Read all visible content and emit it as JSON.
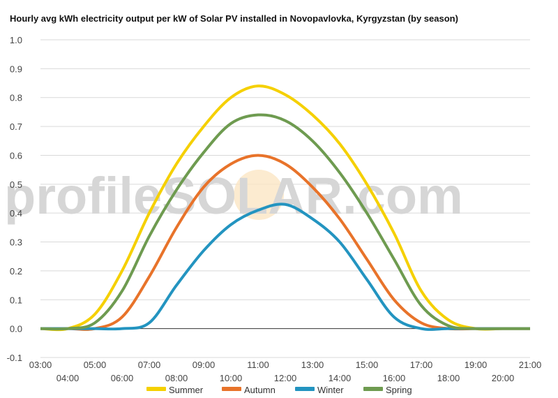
{
  "chart_data": {
    "type": "line",
    "title": "Hourly avg kWh electricity output per kW of Solar PV installed in Novopavlovka, Kyrgyzstan (by season)",
    "watermark": "profileSOLAR.com",
    "x": [
      "03:00",
      "04:00",
      "05:00",
      "06:00",
      "07:00",
      "08:00",
      "09:00",
      "10:00",
      "11:00",
      "12:00",
      "13:00",
      "14:00",
      "15:00",
      "16:00",
      "17:00",
      "18:00",
      "19:00",
      "20:00",
      "21:00"
    ],
    "ylim": [
      -0.1,
      1.0
    ],
    "yticks": [
      "1.0",
      "0.9",
      "0.8",
      "0.7",
      "0.6",
      "0.5",
      "0.4",
      "0.3",
      "0.2",
      "0.1",
      "0.0",
      "-0.1"
    ],
    "grid": true,
    "legend_position": "bottom",
    "series": [
      {
        "name": "Summer",
        "color": "#f5d000",
        "values": [
          0.0,
          0.0,
          0.05,
          0.2,
          0.4,
          0.57,
          0.7,
          0.8,
          0.84,
          0.81,
          0.74,
          0.64,
          0.5,
          0.33,
          0.13,
          0.03,
          0.0,
          0.0,
          0.0
        ]
      },
      {
        "name": "Autumn",
        "color": "#e8732a",
        "values": [
          0.0,
          0.0,
          0.0,
          0.04,
          0.18,
          0.35,
          0.49,
          0.57,
          0.6,
          0.57,
          0.49,
          0.38,
          0.24,
          0.1,
          0.02,
          0.0,
          0.0,
          0.0,
          0.0
        ]
      },
      {
        "name": "Winter",
        "color": "#2394c0",
        "values": [
          0.0,
          0.0,
          0.0,
          0.0,
          0.02,
          0.15,
          0.27,
          0.36,
          0.41,
          0.43,
          0.38,
          0.3,
          0.17,
          0.04,
          0.0,
          0.0,
          0.0,
          0.0,
          0.0
        ]
      },
      {
        "name": "Spring",
        "color": "#6e9b50",
        "values": [
          0.0,
          0.0,
          0.02,
          0.13,
          0.32,
          0.48,
          0.61,
          0.71,
          0.74,
          0.72,
          0.65,
          0.54,
          0.4,
          0.24,
          0.08,
          0.01,
          0.0,
          0.0,
          0.0
        ]
      }
    ]
  }
}
